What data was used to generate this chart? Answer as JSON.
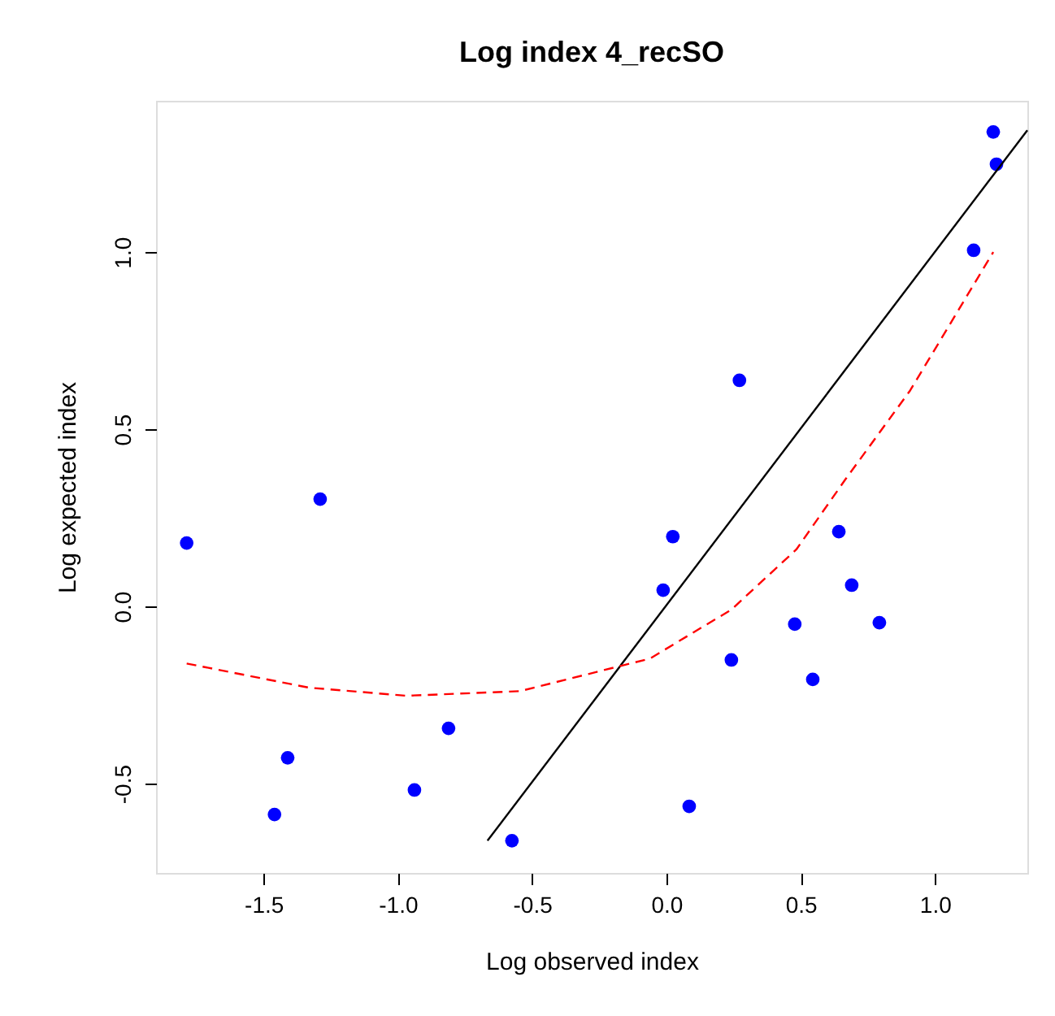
{
  "chart_data": {
    "type": "scatter",
    "title": "Log index 4_recSO",
    "xlabel": "Log observed index",
    "ylabel": "Log expected index",
    "xlim": [
      -1.9,
      1.344
    ],
    "ylim": [
      -0.752,
      1.427
    ],
    "xticks": [
      {
        "value": -1.5,
        "label": "-1.5"
      },
      {
        "value": -1,
        "label": "-1.0"
      },
      {
        "value": -0.5,
        "label": "-0.5"
      },
      {
        "value": 0,
        "label": "0.0"
      },
      {
        "value": 0.5,
        "label": "0.5"
      },
      {
        "value": 1,
        "label": "1.0"
      }
    ],
    "yticks": [
      {
        "value": -0.5,
        "label": "-0.5"
      },
      {
        "value": 0,
        "label": "0.0"
      },
      {
        "value": 0.5,
        "label": "0.5"
      },
      {
        "value": 1,
        "label": "1.0"
      }
    ],
    "grid": false,
    "series": [
      {
        "color": "#0000ff",
        "marker": "circle",
        "x": [
          -1.786,
          -1.289,
          -1.41,
          -1.459,
          -0.938,
          -0.811,
          -0.575,
          -0.012,
          0.024,
          0.085,
          0.242,
          0.272,
          0.478,
          0.545,
          0.642,
          0.69,
          0.793,
          1.144,
          1.217,
          1.229
        ],
        "values": [
          0.179,
          0.303,
          -0.427,
          -0.587,
          -0.518,
          -0.344,
          -0.661,
          0.046,
          0.197,
          -0.564,
          -0.151,
          0.638,
          -0.05,
          -0.206,
          0.211,
          0.06,
          -0.046,
          1.005,
          1.339,
          1.248
        ]
      },
      {
        "type": "line",
        "color": "#000000",
        "line_style": "solid",
        "x": [
          -0.666,
          1.344
        ],
        "values": [
          -0.661,
          1.344
        ]
      },
      {
        "type": "line",
        "color": "#ff0000",
        "line_style": "dashed",
        "x": [
          -1.786,
          -1.332,
          -0.969,
          -0.545,
          -0.303,
          -0.061,
          0.242,
          0.484,
          0.666,
          0.908,
          1.217
        ],
        "values": [
          -0.161,
          -0.229,
          -0.252,
          -0.239,
          -0.193,
          -0.147,
          -0.009,
          0.161,
          0.358,
          0.61,
          1.0
        ]
      }
    ]
  }
}
